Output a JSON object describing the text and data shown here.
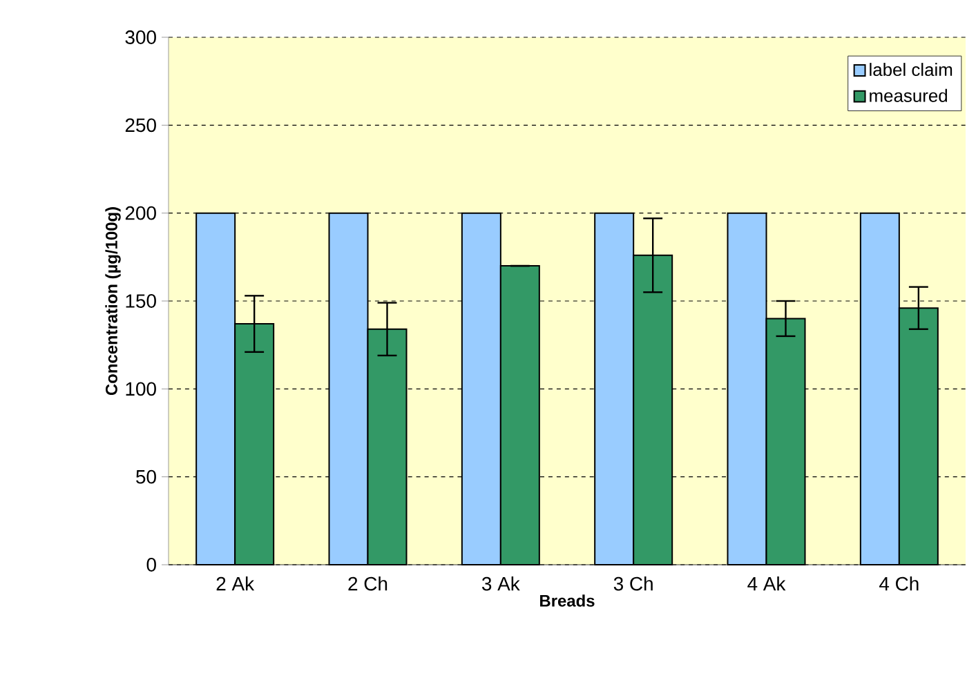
{
  "chart_data": {
    "type": "bar",
    "xlabel": "Breads",
    "ylabel": "Concentration (µg/100g)",
    "categories": [
      "2  Ak",
      "2 Ch",
      "3 Ak",
      "3 Ch",
      "4 Ak",
      "4 Ch"
    ],
    "series": [
      {
        "name": "label claim",
        "color": "#99ccff",
        "values": [
          200,
          200,
          200,
          200,
          200,
          200
        ]
      },
      {
        "name": "measured",
        "color": "#339966",
        "values": [
          137,
          134,
          170,
          176,
          140,
          146
        ],
        "errors": [
          16,
          15,
          0,
          21,
          10,
          12
        ]
      }
    ],
    "ylim": [
      0,
      300
    ],
    "yticks": [
      0,
      50,
      100,
      150,
      200,
      250,
      300
    ],
    "grid": "y",
    "legend": "top right"
  }
}
